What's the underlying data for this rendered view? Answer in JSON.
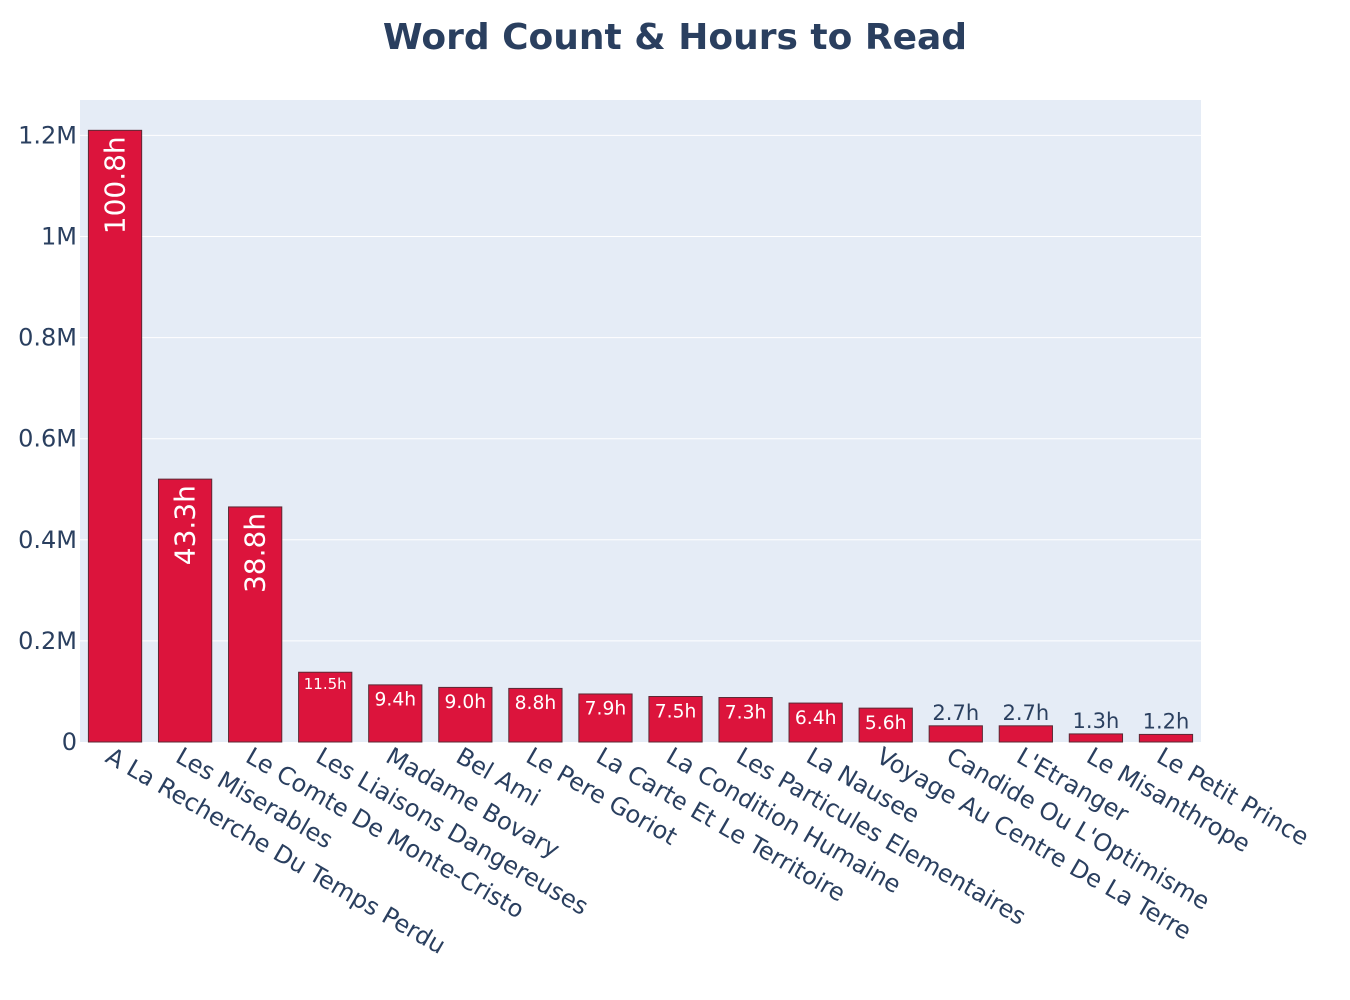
{
  "chart_data": {
    "type": "bar",
    "title": "Word Count & Hours to Read",
    "xlabel": "",
    "ylabel": "",
    "ylim": [
      0,
      1270000
    ],
    "yticks": [
      {
        "value": 0,
        "label": "0"
      },
      {
        "value": 200000,
        "label": "0.2M"
      },
      {
        "value": 400000,
        "label": "0.4M"
      },
      {
        "value": 600000,
        "label": "0.6M"
      },
      {
        "value": 800000,
        "label": "0.8M"
      },
      {
        "value": 1000000,
        "label": "1M"
      },
      {
        "value": 1200000,
        "label": "1.2M"
      }
    ],
    "categories": [
      "A La Recherche Du Temps Perdu",
      "Les Miserables",
      "Le Comte De Monte-Cristo",
      "Les Liaisons Dangereuses",
      "Madame Bovary",
      "Bel Ami",
      "Le Pere Goriot",
      "La Carte Et Le Territoire",
      "La Condition Humaine",
      "Les Particules Elementaires",
      "La Nausee",
      "Voyage Au Centre De La Terre",
      "Candide Ou L'Optimisme",
      "L'Etranger",
      "Le Misanthrope",
      "Le Petit Prince"
    ],
    "values": [
      1210000,
      520000,
      465000,
      138000,
      113000,
      108000,
      106000,
      95000,
      90000,
      88000,
      77000,
      67000,
      32000,
      32000,
      16000,
      15000
    ],
    "data_labels": [
      "100.8h",
      "43.3h",
      "38.8h",
      "11.5h",
      "9.4h",
      "9.0h",
      "8.8h",
      "7.9h",
      "7.5h",
      "7.3h",
      "6.4h",
      "5.6h",
      "2.7h",
      "2.7h",
      "1.3h",
      "1.2h"
    ],
    "grid": true,
    "legend": "none",
    "colors": {
      "bar": "#dc143c",
      "bar_outline": "#5a2a35",
      "plot_bg": "#e5ecf6",
      "grid": "#ffffff",
      "text": "#2a3f5f",
      "label_inside": "#ffffff"
    }
  }
}
